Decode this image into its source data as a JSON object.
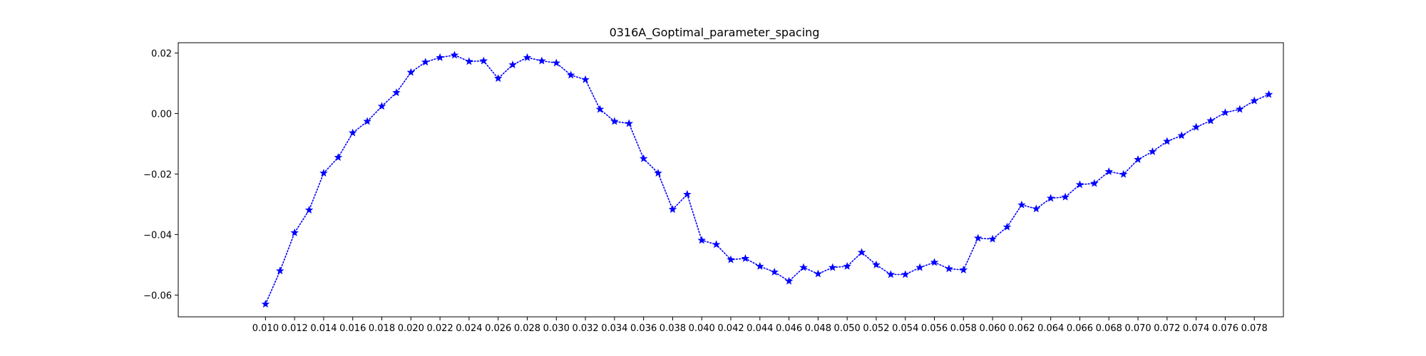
{
  "chart_data": {
    "type": "line",
    "title": "0316A_Goptimal_parameter_spacing",
    "xlabel": "",
    "ylabel": "",
    "xlim": [
      0.004,
      0.08
    ],
    "ylim": [
      -0.0672,
      0.0234
    ],
    "grid": false,
    "x_ticks": [
      0.01,
      0.012,
      0.014,
      0.016,
      0.018,
      0.02,
      0.022,
      0.024,
      0.026,
      0.028,
      0.03,
      0.032,
      0.034,
      0.036,
      0.038,
      0.04,
      0.042,
      0.044,
      0.046,
      0.048,
      0.05,
      0.052,
      0.054,
      0.056,
      0.058,
      0.06,
      0.062,
      0.064,
      0.066,
      0.068,
      0.07,
      0.072,
      0.074,
      0.076,
      0.078
    ],
    "x_tick_labels": [
      "0.010",
      "0.012",
      "0.014",
      "0.016",
      "0.018",
      "0.020",
      "0.022",
      "0.024",
      "0.026",
      "0.028",
      "0.030",
      "0.032",
      "0.034",
      "0.036",
      "0.038",
      "0.040",
      "0.042",
      "0.044",
      "0.046",
      "0.048",
      "0.050",
      "0.052",
      "0.054",
      "0.056",
      "0.058",
      "0.060",
      "0.062",
      "0.064",
      "0.066",
      "0.068",
      "0.070",
      "0.072",
      "0.074",
      "0.076",
      "0.078"
    ],
    "y_ticks": [
      0.02,
      0.0,
      -0.02,
      -0.04,
      -0.06
    ],
    "y_tick_labels": [
      "0.02",
      "0.00",
      "−0.02",
      "−0.04",
      "−0.06"
    ],
    "series": [
      {
        "color": "#0000ff",
        "line_style": "dotted",
        "marker": "star",
        "x": [
          0.01,
          0.011,
          0.012,
          0.013,
          0.014,
          0.015,
          0.016,
          0.017,
          0.018,
          0.019,
          0.02,
          0.021,
          0.022,
          0.023,
          0.024,
          0.025,
          0.026,
          0.027,
          0.028,
          0.029,
          0.03,
          0.031,
          0.032,
          0.033,
          0.034,
          0.035,
          0.036,
          0.037,
          0.038,
          0.039,
          0.04,
          0.041,
          0.042,
          0.043,
          0.044,
          0.045,
          0.046,
          0.047,
          0.048,
          0.049,
          0.05,
          0.051,
          0.052,
          0.053,
          0.054,
          0.055,
          0.056,
          0.057,
          0.058,
          0.059,
          0.06,
          0.061,
          0.062,
          0.063,
          0.064,
          0.065,
          0.066,
          0.067,
          0.068,
          0.069,
          0.07,
          0.071,
          0.072,
          0.073,
          0.074,
          0.075,
          0.076,
          0.077,
          0.078,
          0.079
        ],
        "y": [
          -0.063,
          -0.052,
          -0.0394,
          -0.0319,
          -0.0197,
          -0.0145,
          -0.0064,
          -0.0026,
          0.0024,
          0.0069,
          0.0136,
          0.017,
          0.0185,
          0.0193,
          0.0172,
          0.0174,
          0.0116,
          0.0161,
          0.0185,
          0.0174,
          0.0167,
          0.0127,
          0.0112,
          0.0014,
          -0.0026,
          -0.0033,
          -0.0149,
          -0.0197,
          -0.0317,
          -0.0267,
          -0.0419,
          -0.0433,
          -0.0483,
          -0.0479,
          -0.0505,
          -0.0524,
          -0.0554,
          -0.0509,
          -0.053,
          -0.0509,
          -0.0505,
          -0.0459,
          -0.05,
          -0.0532,
          -0.0532,
          -0.0509,
          -0.0492,
          -0.0513,
          -0.0517,
          -0.0412,
          -0.0415,
          -0.0375,
          -0.0302,
          -0.0315,
          -0.028,
          -0.0276,
          -0.0235,
          -0.0231,
          -0.0192,
          -0.0201,
          -0.0152,
          -0.0126,
          -0.0092,
          -0.0073,
          -0.0045,
          -0.0024,
          0.0003,
          0.0014,
          0.0042,
          0.0063
        ]
      }
    ]
  }
}
